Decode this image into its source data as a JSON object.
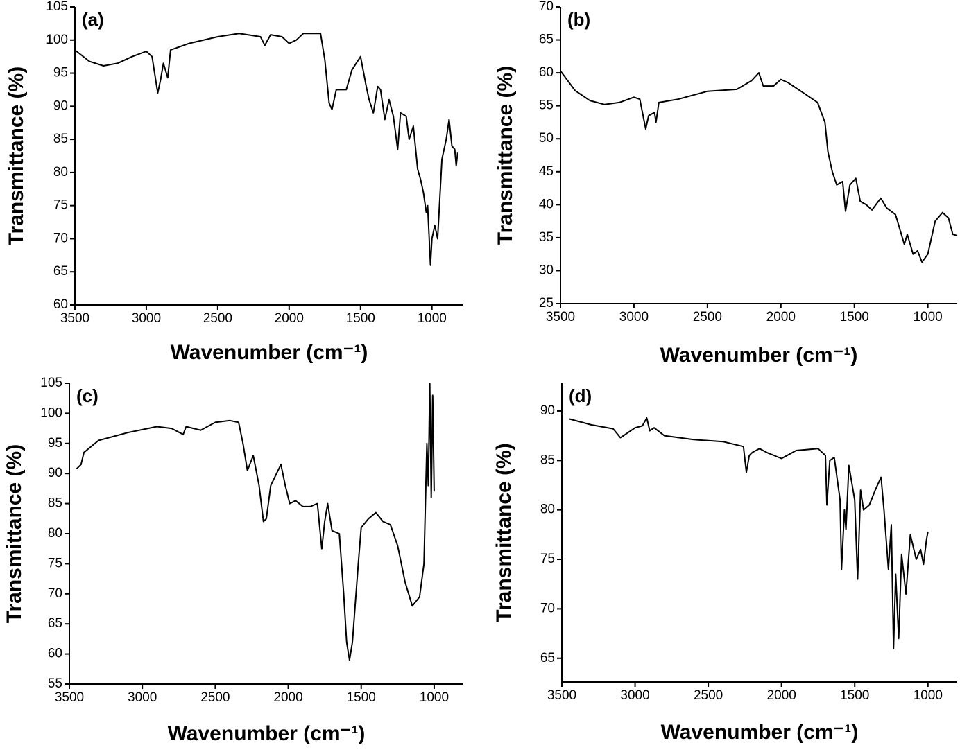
{
  "chart_data": [
    {
      "type": "line",
      "title": "(a)",
      "xlabel": "Wavenumber (cm⁻¹)",
      "ylabel": "Transmittance (%)",
      "color": "#000000",
      "xlim": [
        3500,
        780
      ],
      "xticks": [
        3500,
        3000,
        2500,
        2000,
        1500,
        1000
      ],
      "ylim": [
        60,
        105
      ],
      "yticks": [
        60,
        65,
        70,
        75,
        80,
        85,
        90,
        95,
        100,
        105
      ],
      "x": [
        3500,
        3400,
        3300,
        3200,
        3100,
        3000,
        2960,
        2920,
        2900,
        2880,
        2850,
        2830,
        2700,
        2500,
        2350,
        2200,
        2170,
        2130,
        2050,
        2000,
        1950,
        1900,
        1780,
        1750,
        1720,
        1700,
        1670,
        1600,
        1560,
        1530,
        1500,
        1460,
        1440,
        1410,
        1380,
        1360,
        1330,
        1300,
        1270,
        1240,
        1220,
        1180,
        1160,
        1130,
        1100,
        1080,
        1060,
        1040,
        1030,
        1010,
        1000,
        980,
        960,
        930,
        900,
        880,
        860,
        840,
        830,
        820
      ],
      "values": [
        98.5,
        96.8,
        96.1,
        96.5,
        97.5,
        98.3,
        97.5,
        92,
        94,
        96.5,
        94.3,
        98.5,
        99.5,
        100.5,
        101,
        100.5,
        99.2,
        100.8,
        100.5,
        99.5,
        100,
        101,
        101,
        97,
        90.5,
        89.5,
        92.5,
        92.5,
        95.5,
        96.5,
        97.5,
        93,
        91,
        89,
        93,
        92.5,
        88,
        91,
        88.5,
        83.5,
        89,
        88.5,
        85,
        87,
        80.5,
        79,
        77,
        74,
        75,
        66,
        70,
        72,
        70,
        82,
        85,
        88,
        84,
        83.5,
        81,
        83
      ]
    },
    {
      "type": "line",
      "title": "(b)",
      "xlabel": "Wavenumber (cm⁻¹)",
      "ylabel": "Transmittance (%)",
      "color": "#000000",
      "xlim": [
        3500,
        800
      ],
      "xticks": [
        3500,
        3000,
        2500,
        2000,
        1500,
        1000
      ],
      "ylim": [
        25,
        70
      ],
      "yticks": [
        25,
        30,
        35,
        40,
        45,
        50,
        55,
        60,
        65,
        70
      ],
      "x": [
        3500,
        3400,
        3300,
        3200,
        3100,
        3000,
        2960,
        2920,
        2900,
        2860,
        2850,
        2830,
        2700,
        2500,
        2300,
        2200,
        2150,
        2120,
        2050,
        2000,
        1950,
        1850,
        1750,
        1700,
        1680,
        1650,
        1620,
        1580,
        1560,
        1530,
        1490,
        1460,
        1420,
        1380,
        1320,
        1280,
        1220,
        1160,
        1140,
        1100,
        1070,
        1040,
        1000,
        950,
        900,
        860,
        830,
        800
      ],
      "values": [
        60.3,
        57.3,
        55.8,
        55.2,
        55.5,
        56.3,
        56,
        51.5,
        53.5,
        54,
        52.5,
        55.5,
        56,
        57.2,
        57.5,
        58.8,
        60,
        58,
        58,
        59,
        58.5,
        57,
        55.5,
        52.5,
        48,
        45,
        43,
        43.5,
        39,
        43,
        44,
        40.5,
        40,
        39.2,
        41,
        39.5,
        38.5,
        34,
        35.5,
        32.5,
        33,
        31.3,
        32.5,
        37.5,
        38.8,
        38,
        35.5,
        35.3
      ]
    },
    {
      "type": "line",
      "title": "(c)",
      "xlabel": "Wavenumber (cm⁻¹)",
      "ylabel": "Transmittance (%)",
      "color": "#000000",
      "xlim": [
        3500,
        800
      ],
      "xticks": [
        3500,
        3000,
        2500,
        2000,
        1500,
        1000
      ],
      "ylim": [
        55,
        105
      ],
      "yticks": [
        55,
        60,
        65,
        70,
        75,
        80,
        85,
        90,
        95,
        100,
        105
      ],
      "x": [
        3450,
        3420,
        3400,
        3300,
        3100,
        2900,
        2800,
        2720,
        2700,
        2600,
        2500,
        2400,
        2340,
        2310,
        2280,
        2240,
        2200,
        2170,
        2150,
        2120,
        2080,
        2050,
        2020,
        1990,
        1950,
        1900,
        1850,
        1800,
        1770,
        1750,
        1730,
        1700,
        1650,
        1620,
        1600,
        1580,
        1560,
        1520,
        1500,
        1450,
        1400,
        1350,
        1300,
        1250,
        1200,
        1150,
        1100,
        1070,
        1050,
        1040,
        1030,
        1020,
        1010,
        1000
      ],
      "values": [
        90.8,
        91.5,
        93.5,
        95.5,
        96.8,
        97.8,
        97.5,
        96.5,
        97.8,
        97.2,
        98.5,
        98.8,
        98.5,
        95,
        90.5,
        93,
        88,
        82,
        82.5,
        88,
        90,
        91.5,
        88,
        85,
        85.5,
        84.5,
        84.5,
        85,
        77.5,
        82,
        85,
        80.5,
        80,
        70,
        62,
        59,
        62,
        75,
        81,
        82.5,
        83.5,
        82,
        81.5,
        78,
        72,
        68,
        69.5,
        75,
        95,
        88,
        105,
        86,
        103,
        87
      ]
    },
    {
      "type": "line",
      "title": "(d)",
      "xlabel": "Wavenumber (cm⁻¹)",
      "ylabel": "Transmittance (%)",
      "color": "#000000",
      "xlim": [
        3500,
        800
      ],
      "xticks": [
        3500,
        3000,
        2500,
        2000,
        1500,
        1000
      ],
      "ylim": [
        62.6,
        92.8
      ],
      "yticks": [
        65,
        70,
        75,
        80,
        85,
        90
      ],
      "x": [
        3450,
        3300,
        3150,
        3100,
        3050,
        3000,
        2950,
        2920,
        2900,
        2870,
        2800,
        2600,
        2400,
        2260,
        2240,
        2220,
        2200,
        2150,
        2100,
        2000,
        1900,
        1750,
        1700,
        1690,
        1670,
        1640,
        1600,
        1590,
        1570,
        1560,
        1540,
        1500,
        1480,
        1460,
        1440,
        1400,
        1360,
        1320,
        1300,
        1270,
        1250,
        1235,
        1220,
        1200,
        1180,
        1150,
        1120,
        1080,
        1050,
        1030,
        1010,
        1000
      ],
      "values": [
        89.2,
        88.6,
        88.2,
        87.3,
        87.8,
        88.3,
        88.5,
        89.3,
        88,
        88.3,
        87.5,
        87.1,
        86.9,
        86.4,
        83.8,
        85.5,
        85.8,
        86.2,
        85.8,
        85.2,
        86,
        86.2,
        85.5,
        80.5,
        85,
        85.3,
        81,
        74,
        80,
        78,
        84.5,
        81,
        73,
        82,
        80,
        80.5,
        82,
        83.3,
        80,
        74,
        78.5,
        66,
        73.5,
        67,
        75.5,
        71.5,
        77.5,
        75,
        76,
        74.5,
        77,
        77.8
      ]
    }
  ]
}
